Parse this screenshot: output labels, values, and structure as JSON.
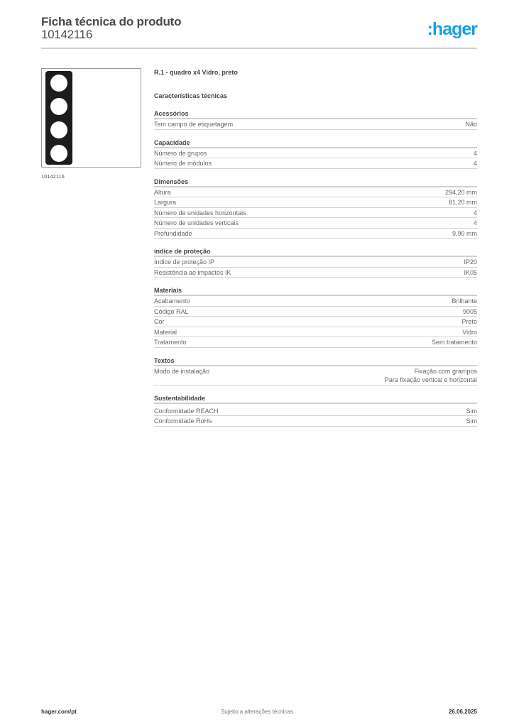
{
  "header": {
    "title": "Ficha técnica do produto",
    "product_number": "10142116",
    "logo": "hager",
    "logo_color": "#1aa0dc"
  },
  "image": {
    "caption": "10142116",
    "description_icon": "frame-4x-black-glass"
  },
  "product": {
    "name": "R.1 - quadro x4 Vidro, preto",
    "section_title": "Características técnicas"
  },
  "sections": [
    {
      "title": "Acessórios",
      "rows": [
        {
          "label": "Tem campo de etiquetagem",
          "value": [
            "Não"
          ]
        }
      ]
    },
    {
      "title": "Capacidade",
      "rows": [
        {
          "label": "Número de grupos",
          "value": [
            "4"
          ]
        },
        {
          "label": "Número de módulos",
          "value": [
            "4"
          ]
        }
      ]
    },
    {
      "title": "Dimensões",
      "rows": [
        {
          "label": "Altura",
          "value": [
            "294,20 mm"
          ]
        },
        {
          "label": "Largura",
          "value": [
            "81,20 mm"
          ]
        },
        {
          "label": "Número de unidades horizontais",
          "value": [
            "4"
          ]
        },
        {
          "label": "Número de unidades verticais",
          "value": [
            "4"
          ]
        },
        {
          "label": "Profundidade",
          "value": [
            "9,90 mm"
          ]
        }
      ]
    },
    {
      "title": "índice de proteção",
      "rows": [
        {
          "label": "Índice de proteção IP",
          "value": [
            "IP20"
          ]
        },
        {
          "label": "Resistência ao impactos IK",
          "value": [
            "IK05"
          ]
        }
      ]
    },
    {
      "title": "Materiais",
      "rows": [
        {
          "label": "Acabamento",
          "value": [
            "Brilhante"
          ]
        },
        {
          "label": "Código RAL",
          "value": [
            "9005"
          ]
        },
        {
          "label": "Cor",
          "value": [
            "Preto"
          ]
        },
        {
          "label": "Material",
          "value": [
            "Vidro"
          ]
        },
        {
          "label": "Tratamento",
          "value": [
            "Sem tratamento"
          ]
        }
      ]
    },
    {
      "title": "Textos",
      "rows": [
        {
          "label": "Modo de instalação",
          "value": [
            "Fixação com grampos",
            "Para fixação vertical e horizontal"
          ]
        }
      ]
    },
    {
      "title": "Sustentabilidade",
      "rows": [
        {
          "label": "Conformidade REACH",
          "value": [
            "Sim"
          ]
        },
        {
          "label": "Conformidade RoHs",
          "value": [
            "Sim"
          ]
        }
      ]
    }
  ],
  "footer": {
    "website": "hager.com/pt",
    "note": "Sujeito a alterações técnicas",
    "date": "26.06.2025"
  }
}
